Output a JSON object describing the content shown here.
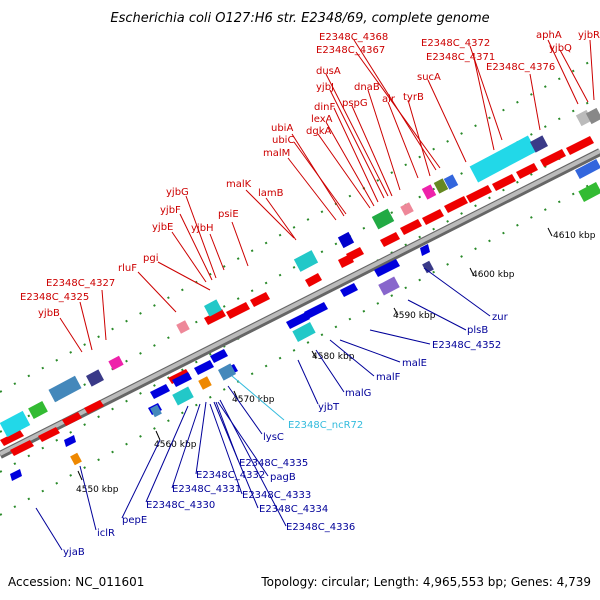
{
  "title": "Escherichia coli O127:H6 str. E2348/69, complete genome",
  "footer": {
    "accession": "Accession: NC_011601",
    "info": "Topology: circular; Length: 4,965,553 bp; Genes: 4,739"
  },
  "colors": {
    "forward_label": "#cc0000",
    "reverse_label": "#000099",
    "ncrna_label": "#33bbdd",
    "forward_feature": "#ee0000",
    "reverse_feature": "#0000dd",
    "backbone": "#999999"
  },
  "ticks": [
    {
      "text": "4550 kbp"
    },
    {
      "text": "4560 kbp"
    },
    {
      "text": "4570 kbp"
    },
    {
      "text": "4580 kbp"
    },
    {
      "text": "4590 kbp"
    },
    {
      "text": "4600 kbp"
    },
    {
      "text": "4610 kbp"
    }
  ],
  "forward_labels": [
    {
      "text": "yjbB"
    },
    {
      "text": "E2348C_4325"
    },
    {
      "text": "E2348C_4327"
    },
    {
      "text": "rluF"
    },
    {
      "text": "pgi"
    },
    {
      "text": "yjbE"
    },
    {
      "text": "yjbF"
    },
    {
      "text": "yjbG"
    },
    {
      "text": "yjbH"
    },
    {
      "text": "psiE"
    },
    {
      "text": "malK"
    },
    {
      "text": "lamB"
    },
    {
      "text": "malM"
    },
    {
      "text": "ubiA"
    },
    {
      "text": "ubiC"
    },
    {
      "text": "dgkA"
    },
    {
      "text": "lexA"
    },
    {
      "text": "dinF"
    },
    {
      "text": "yjbJ"
    },
    {
      "text": "dusA"
    },
    {
      "text": "pspG"
    },
    {
      "text": "dnaB"
    },
    {
      "text": "alr"
    },
    {
      "text": "tyrB"
    },
    {
      "text": "E2348C_4368"
    },
    {
      "text": "E2348C_4367"
    },
    {
      "text": "sucA"
    },
    {
      "text": "E2348C_4372"
    },
    {
      "text": "E2348C_4371"
    },
    {
      "text": "E2348C_4376"
    },
    {
      "text": "aphA"
    },
    {
      "text": "yjbQ"
    },
    {
      "text": "yjbR"
    }
  ],
  "reverse_labels": [
    {
      "text": "zur"
    },
    {
      "text": "plsB"
    },
    {
      "text": "E2348C_4352"
    },
    {
      "text": "malE"
    },
    {
      "text": "malF"
    },
    {
      "text": "malG"
    },
    {
      "text": "yjbT"
    },
    {
      "text": "lysC"
    },
    {
      "text": "E2348C_4335"
    },
    {
      "text": "pagB"
    },
    {
      "text": "E2348C_4332"
    },
    {
      "text": "E2348C_4331"
    },
    {
      "text": "E2348C_4333"
    },
    {
      "text": "E2348C_4330"
    },
    {
      "text": "E2348C_4334"
    },
    {
      "text": "E2348C_4336"
    },
    {
      "text": "pepE"
    },
    {
      "text": "iclR"
    },
    {
      "text": "yjaB"
    }
  ],
  "ncrna_labels": [
    {
      "text": "E2348C_ncR72"
    }
  ]
}
